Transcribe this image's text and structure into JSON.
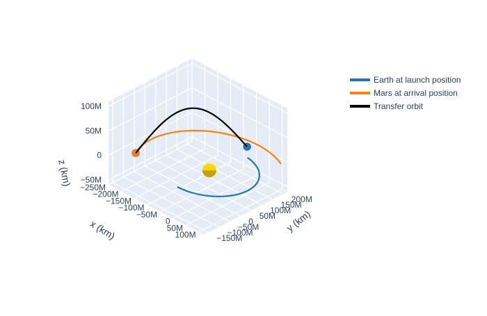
{
  "chart_data": {
    "type": "line",
    "scene": "3d",
    "axes": {
      "x": {
        "title": "x (km)",
        "ticks": [
          "−250M",
          "−200M",
          "−150M",
          "−100M",
          "−50M",
          "0",
          "50M",
          "100M"
        ]
      },
      "y": {
        "title": "y (km)",
        "ticks": [
          "−150M",
          "−100M",
          "−50M",
          "0",
          "50M",
          "100M",
          "150M",
          "200M"
        ]
      },
      "z": {
        "title": "z (km)",
        "ticks": [
          "−50M",
          "0",
          "50M",
          "100M"
        ]
      },
      "xlim": [
        -250000000,
        120000000
      ],
      "ylim": [
        -170000000,
        220000000
      ],
      "zlim": [
        -60000000,
        110000000
      ],
      "grid": true
    },
    "legend": {
      "placement": "top-right"
    },
    "series": [
      {
        "name": "Earth at launch position",
        "color": "#1f77b4",
        "orbit": {
          "radius": 149600000,
          "z": 0,
          "from_deg": -90,
          "to_deg": 80
        },
        "marker": {
          "x": 30000000,
          "y": 140000000,
          "z": 25000000
        }
      },
      {
        "name": "Mars at arrival position",
        "color": "#ff7f0e",
        "orbit": {
          "radius": 227900000,
          "z": 0,
          "from_deg": 60,
          "to_deg": 205
        },
        "marker": {
          "x": -206000000,
          "y": -96000000,
          "z": 0
        }
      },
      {
        "name": "Transfer orbit",
        "color": "#000000",
        "arc": {
          "from": [
            -206000000,
            -96000000,
            0
          ],
          "to": [
            30000000,
            140000000,
            25000000
          ],
          "peak_z": 85000000
        }
      }
    ],
    "sun": {
      "color": "#ffd700",
      "x": 0,
      "y": 0,
      "z": 0
    }
  }
}
